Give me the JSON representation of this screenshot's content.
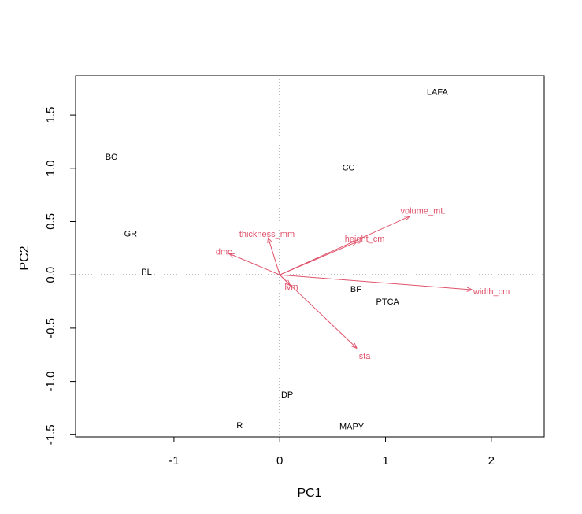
{
  "chart_data": {
    "type": "scatter",
    "subtype": "biplot",
    "title": "",
    "xlabel": "PC1",
    "ylabel": "PC2",
    "xlim": [
      -1.93,
      2.5
    ],
    "ylim": [
      -1.52,
      1.87
    ],
    "x_ticks": [
      {
        "value": -1,
        "label": "-1"
      },
      {
        "value": 0,
        "label": "0"
      },
      {
        "value": 1,
        "label": "1"
      },
      {
        "value": 2,
        "label": "2"
      }
    ],
    "y_ticks": [
      {
        "value": -1.5,
        "label": "-1.5"
      },
      {
        "value": -1.0,
        "label": "-1.0"
      },
      {
        "value": -0.5,
        "label": "-0.5"
      },
      {
        "value": 0.0,
        "label": "0.0"
      },
      {
        "value": 0.5,
        "label": "0.5"
      },
      {
        "value": 1.0,
        "label": "1.0"
      },
      {
        "value": 1.5,
        "label": "1.5"
      }
    ],
    "reference_lines": {
      "x": 0,
      "y": 0,
      "style": "dotted"
    },
    "observations": [
      {
        "label": "LAFA",
        "x": 1.49,
        "y": 1.72
      },
      {
        "label": "BO",
        "x": -1.59,
        "y": 1.11
      },
      {
        "label": "CC",
        "x": 0.65,
        "y": 1.01
      },
      {
        "label": "GR",
        "x": -1.41,
        "y": 0.39
      },
      {
        "label": "PL",
        "x": -1.26,
        "y": 0.03
      },
      {
        "label": "BF",
        "x": 0.72,
        "y": -0.13
      },
      {
        "label": "PTCA",
        "x": 1.02,
        "y": -0.25
      },
      {
        "label": "DP",
        "x": 0.07,
        "y": -1.12
      },
      {
        "label": "R",
        "x": -0.38,
        "y": -1.41
      },
      {
        "label": "MAPY",
        "x": 0.68,
        "y": -1.42
      }
    ],
    "variables": [
      {
        "label": "volume_mL",
        "x": 1.23,
        "y": 0.55
      },
      {
        "label": "height_cm",
        "x": 0.73,
        "y": 0.31
      },
      {
        "label": "thickness_mm",
        "x": -0.11,
        "y": 0.35
      },
      {
        "label": "dmc",
        "x": -0.48,
        "y": 0.2
      },
      {
        "label": "lvm",
        "x": 0.1,
        "y": -0.1
      },
      {
        "label": "width_cm",
        "x": 1.82,
        "y": -0.14
      },
      {
        "label": "sta",
        "x": 0.73,
        "y": -0.69
      }
    ],
    "colors": {
      "variables": "#DF536B",
      "observations": "#000000"
    }
  }
}
